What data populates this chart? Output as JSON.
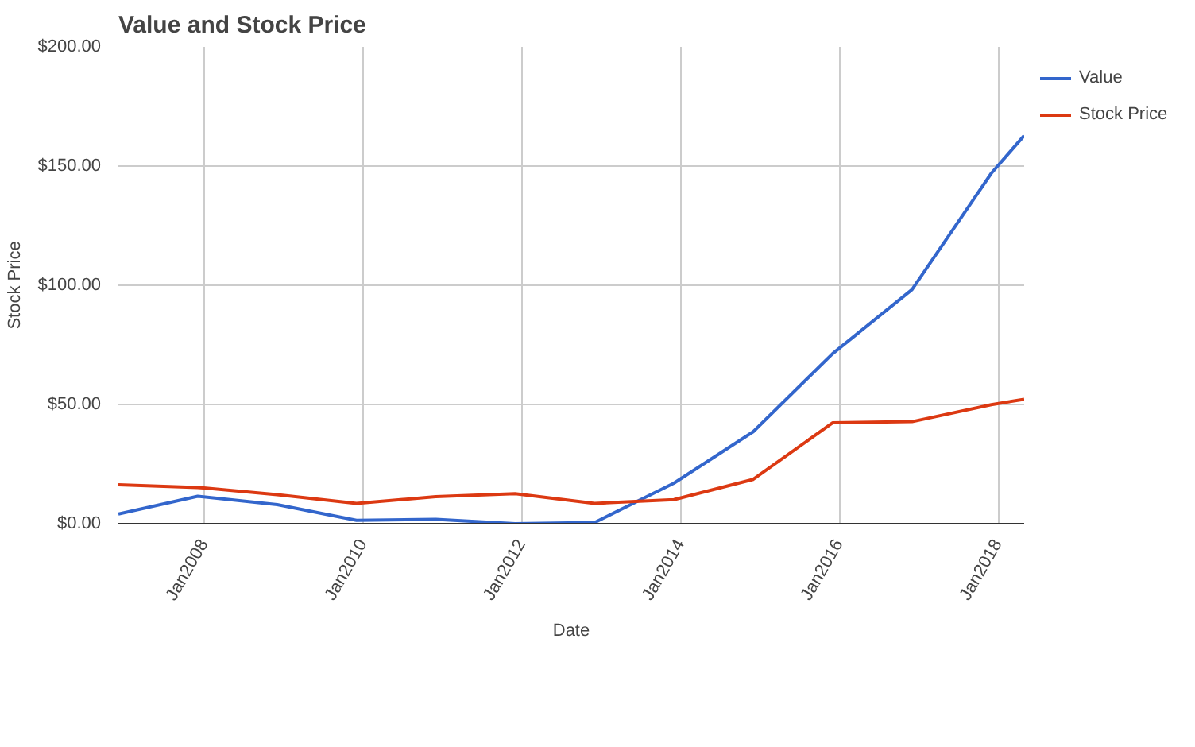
{
  "chart_data": {
    "type": "line",
    "title": "Value and Stock Price",
    "xlabel": "Date",
    "ylabel": "Stock Price",
    "x": [
      "2006-12",
      "2007-12",
      "2008-12",
      "2009-12",
      "2010-12",
      "2011-12",
      "2012-12",
      "2013-12",
      "2014-12",
      "2015-12",
      "2016-12",
      "2017-12",
      "2018-05"
    ],
    "series": [
      {
        "name": "Value",
        "color": "#3366cc",
        "values": [
          4.1,
          11.5,
          8.0,
          1.4,
          1.8,
          0,
          0.5,
          17,
          38.6,
          71.3,
          98.2,
          147,
          162.8
        ]
      },
      {
        "name": "Stock Price",
        "color": "#dc3912",
        "values": [
          16.3,
          15.2,
          12.2,
          8.5,
          11.3,
          12.6,
          8.5,
          10.1,
          18.6,
          42.3,
          42.8,
          49.9,
          52.2
        ]
      }
    ],
    "xlim": [
      "2006-12",
      "2018-05"
    ],
    "xticks": [
      {
        "value": "2008-01",
        "label": "Jan2008"
      },
      {
        "value": "2010-01",
        "label": "Jan2010"
      },
      {
        "value": "2012-01",
        "label": "Jan2012"
      },
      {
        "value": "2014-01",
        "label": "Jan2014"
      },
      {
        "value": "2016-01",
        "label": "Jan2016"
      },
      {
        "value": "2018-01",
        "label": "Jan2018"
      }
    ],
    "ylim": [
      0,
      200
    ],
    "yticks": [
      {
        "value": 0,
        "label": "$0.00"
      },
      {
        "value": 50,
        "label": "$50.00"
      },
      {
        "value": 100,
        "label": "$100.00"
      },
      {
        "value": 150,
        "label": "$150.00"
      },
      {
        "value": 200,
        "label": "$200.00"
      }
    ],
    "grid": true,
    "legend": "top right",
    "line_style": "solid",
    "marker": "none"
  }
}
